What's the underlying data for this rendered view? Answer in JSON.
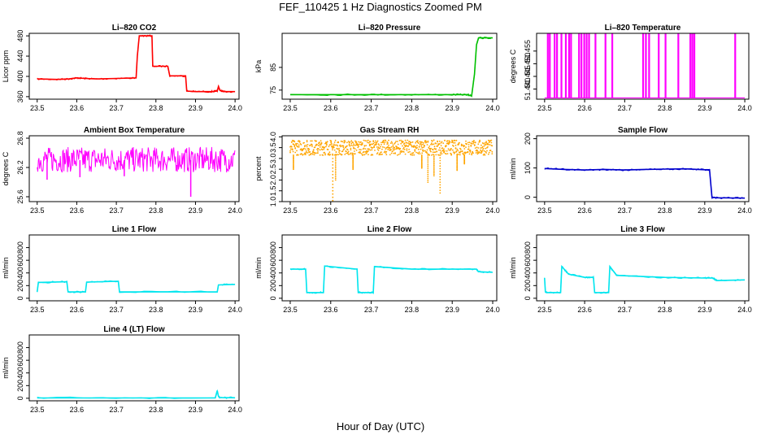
{
  "title": "FEF_110425  1 Hz Diagnostics Zoomed PM",
  "xlabel": "Hour of Day (UTC)",
  "chart_data": [
    {
      "type": "line",
      "title": "Li–820 CO2",
      "ylabel": "Licor ppm",
      "color": "#ff0000",
      "xlim": [
        23.48,
        24.01
      ],
      "ylim": [
        355,
        485
      ],
      "xticks": [
        "23.5",
        "23.6",
        "23.7",
        "23.8",
        "23.9",
        "24.0"
      ],
      "yticks": [
        "360",
        "400",
        "440",
        "480"
      ],
      "series": [
        {
          "x": [
            23.5,
            23.55,
            23.58,
            23.6,
            23.62,
            23.65,
            23.7,
            23.75,
            23.753,
            23.758,
            23.79,
            23.792,
            23.83,
            23.835,
            23.875,
            23.878,
            23.9,
            23.94,
            23.955,
            23.958,
            23.962,
            23.97,
            24.0
          ],
          "y": [
            395,
            394,
            395,
            397,
            396,
            395,
            396,
            397,
            440,
            480,
            480,
            420,
            420,
            401,
            401,
            371,
            370,
            370,
            371,
            380,
            372,
            370,
            370
          ]
        }
      ]
    },
    {
      "type": "line",
      "title": "Li–820 Pressure",
      "ylabel": "kPa",
      "color": "#00c000",
      "xlim": [
        23.48,
        24.01
      ],
      "ylim": [
        71,
        100
      ],
      "xticks": [
        "23.5",
        "23.6",
        "23.7",
        "23.8",
        "23.9",
        "24.0"
      ],
      "yticks": [
        "75",
        "85"
      ],
      "series": [
        {
          "x": [
            23.5,
            23.6,
            23.7,
            23.8,
            23.9,
            23.935,
            23.948,
            23.955,
            23.96,
            23.965,
            24.0
          ],
          "y": [
            73,
            73,
            73,
            73,
            73,
            73,
            72.5,
            82,
            95,
            98,
            98
          ]
        }
      ]
    },
    {
      "type": "line",
      "title": "Li–820 Temperature",
      "ylabel": "degrees C",
      "color": "#ff00ff",
      "xlim": [
        23.48,
        24.01
      ],
      "ylim": [
        51.436,
        51.462
      ],
      "xticks": [
        "23.5",
        "23.6",
        "23.7",
        "23.8",
        "23.9",
        "24.0"
      ],
      "yticks": [
        "51.440",
        "51.445",
        "51.450",
        "51.455"
      ],
      "baseline": 51.4365,
      "spike_top": 51.462,
      "spikes_x": [
        23.507,
        23.512,
        23.524,
        23.53,
        23.541,
        23.552,
        23.56,
        23.565,
        23.585,
        23.591,
        23.598,
        23.604,
        23.61,
        23.626,
        23.651,
        23.668,
        23.745,
        23.752,
        23.76,
        23.784,
        23.801,
        23.833,
        23.863,
        23.868,
        23.873,
        23.975
      ]
    },
    {
      "type": "line",
      "title": "Ambient Box Temperature",
      "ylabel": "degrees C",
      "color": "#ff00ff",
      "xlim": [
        23.48,
        24.01
      ],
      "ylim": [
        25.5,
        26.85
      ],
      "xticks": [
        "23.5",
        "23.6",
        "23.7",
        "23.8",
        "23.9",
        "24.0"
      ],
      "yticks": [
        "25.6",
        "26.2",
        "26.8"
      ],
      "band": {
        "center": 26.35,
        "low": 26.1,
        "high": 26.62
      },
      "dips": [
        {
          "x": 23.888,
          "y": 25.6
        },
        {
          "x": 23.525,
          "y": 25.95
        },
        {
          "x": 23.608,
          "y": 26.0
        },
        {
          "x": 23.72,
          "y": 26.02
        }
      ]
    },
    {
      "type": "scatter",
      "title": "Gas Stream RH",
      "ylabel": "percent",
      "color": "#ffa500",
      "xlim": [
        23.48,
        24.01
      ],
      "ylim": [
        1.0,
        4.05
      ],
      "xticks": [
        "23.5",
        "23.6",
        "23.7",
        "23.8",
        "23.9",
        "24.0"
      ],
      "yticks": [
        "1.0",
        "1.5",
        "2.0",
        "2.5",
        "3.0",
        "3.5",
        "4.0"
      ],
      "band": {
        "low": 3.15,
        "high": 3.85
      },
      "dips": [
        {
          "x": 23.508,
          "y": 2.5
        },
        {
          "x": 23.605,
          "y": 1.05
        },
        {
          "x": 23.612,
          "y": 2.0
        },
        {
          "x": 23.655,
          "y": 2.5
        },
        {
          "x": 23.825,
          "y": 2.55
        },
        {
          "x": 23.84,
          "y": 1.9
        },
        {
          "x": 23.855,
          "y": 2.2
        },
        {
          "x": 23.87,
          "y": 1.4
        },
        {
          "x": 23.912,
          "y": 2.45
        },
        {
          "x": 23.93,
          "y": 2.75
        }
      ]
    },
    {
      "type": "line",
      "title": "Sample Flow",
      "ylabel": "ml/min",
      "color": "#0000cd",
      "xlim": [
        23.48,
        24.01
      ],
      "ylim": [
        -15,
        210
      ],
      "xticks": [
        "23.5",
        "23.6",
        "23.7",
        "23.8",
        "23.9",
        "24.0"
      ],
      "yticks": [
        "0",
        "100",
        "200"
      ],
      "series": [
        {
          "x": [
            23.5,
            23.55,
            23.6,
            23.65,
            23.7,
            23.75,
            23.8,
            23.85,
            23.9,
            23.912,
            23.918,
            23.93,
            24.0
          ],
          "y": [
            98,
            95,
            93,
            95,
            93,
            95,
            96,
            97,
            94,
            94,
            0,
            -2,
            -3
          ]
        }
      ]
    },
    {
      "type": "line",
      "title": "Line 1 Flow",
      "ylabel": "ml/min",
      "color": "#00e5ee",
      "xlim": [
        23.48,
        24.01
      ],
      "ylim": [
        -40,
        1000
      ],
      "xticks": [
        "23.5",
        "23.6",
        "23.7",
        "23.8",
        "23.9",
        "24.0"
      ],
      "yticks": [
        "0",
        "200",
        "400",
        "600",
        "800"
      ],
      "series": [
        {
          "x": [
            23.5,
            23.503,
            23.575,
            23.578,
            23.622,
            23.625,
            23.705,
            23.708,
            23.955,
            23.958,
            24.0
          ],
          "y": [
            100,
            250,
            260,
            100,
            100,
            255,
            270,
            100,
            100,
            210,
            220
          ]
        }
      ]
    },
    {
      "type": "line",
      "title": "Line 2 Flow",
      "ylabel": "ml/min",
      "color": "#00e5ee",
      "xlim": [
        23.48,
        24.01
      ],
      "ylim": [
        -40,
        1000
      ],
      "xticks": [
        "23.5",
        "23.6",
        "23.7",
        "23.8",
        "23.9",
        "24.0"
      ],
      "yticks": [
        "0",
        "200",
        "400",
        "600",
        "800"
      ],
      "series": [
        {
          "x": [
            23.5,
            23.538,
            23.541,
            23.582,
            23.585,
            23.665,
            23.668,
            23.705,
            23.708,
            23.8,
            23.9,
            23.96,
            23.965,
            24.0
          ],
          "y": [
            460,
            460,
            90,
            90,
            510,
            460,
            90,
            90,
            500,
            460,
            460,
            460,
            420,
            410
          ]
        }
      ]
    },
    {
      "type": "line",
      "title": "Line 3 Flow",
      "ylabel": "ml/min",
      "color": "#00e5ee",
      "xlim": [
        23.48,
        24.01
      ],
      "ylim": [
        -40,
        1000
      ],
      "xticks": [
        "23.5",
        "23.6",
        "23.7",
        "23.8",
        "23.9",
        "24.0"
      ],
      "yticks": [
        "0",
        "200",
        "400",
        "600",
        "800"
      ],
      "series": [
        {
          "x": [
            23.5,
            23.502,
            23.505,
            23.54,
            23.543,
            23.56,
            23.6,
            23.622,
            23.625,
            23.66,
            23.663,
            23.68,
            23.8,
            23.9,
            23.92,
            23.93,
            24.0
          ],
          "y": [
            320,
            100,
            90,
            90,
            500,
            380,
            330,
            330,
            90,
            90,
            500,
            360,
            330,
            320,
            320,
            280,
            290
          ]
        }
      ]
    },
    {
      "type": "line",
      "title": "Line 4 (LT) Flow",
      "ylabel": "ml/min",
      "color": "#00e5ee",
      "xlim": [
        23.48,
        24.01
      ],
      "ylim": [
        -40,
        1000
      ],
      "xticks": [
        "23.5",
        "23.6",
        "23.7",
        "23.8",
        "23.9",
        "24.0"
      ],
      "yticks": [
        "0",
        "200",
        "400",
        "600",
        "800"
      ],
      "series": [
        {
          "x": [
            23.5,
            23.7,
            23.95,
            23.955,
            23.958,
            23.962,
            24.0
          ],
          "y": [
            5,
            5,
            5,
            120,
            30,
            10,
            8
          ]
        }
      ]
    }
  ]
}
